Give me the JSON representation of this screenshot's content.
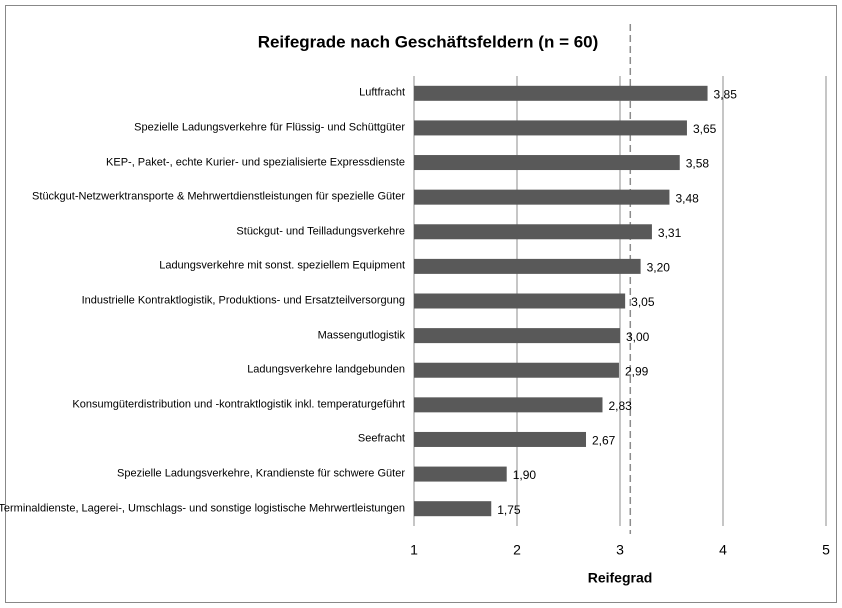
{
  "chart_data": {
    "type": "bar",
    "orientation": "horizontal",
    "title": "Reifegrade nach Geschäftsfeldern (n = 60)",
    "x_label": "Reifegrad",
    "categories": [
      "Luftfracht",
      "Spezielle Ladungsverkehre für Flüssig- und Schüttgüter",
      "KEP-, Paket-, echte Kurier- und spezialisierte Expressdienste",
      "Stückgut-Netzwerktransporte & Mehrwertdienstleistungen für spezielle Güter",
      "Stückgut- und Teilladungsverkehre",
      "Ladungsverkehre mit sonst. speziellem Equipment",
      "Industrielle Kontraktlogistik, Produktions- und Ersatzteilversorgung",
      "Massengutlogistik",
      "Ladungsverkehre landgebunden",
      "Konsumgüterdistribution und -kontraktlogistik inkl. temperaturgeführt",
      "Seefracht",
      "Spezielle Ladungsverkehre, Krandienste für schwere Güter",
      "Terminaldienste, Lagerei-, Umschlags- und sonstige logistische Mehrwertleistungen"
    ],
    "values": [
      3.85,
      3.65,
      3.58,
      3.48,
      3.31,
      3.2,
      3.05,
      3.0,
      2.99,
      2.83,
      2.67,
      1.9,
      1.75
    ],
    "value_labels": [
      "3,85",
      "3,65",
      "3,58",
      "3,48",
      "3,31",
      "3,20",
      "3,05",
      "3,00",
      "2,99",
      "2,83",
      "2,67",
      "1,90",
      "1,75"
    ],
    "color": "#595959",
    "xlim": [
      1,
      5
    ],
    "xticks": [
      1,
      2,
      3,
      4,
      5
    ],
    "grid": true,
    "reference_line": 3.1
  }
}
